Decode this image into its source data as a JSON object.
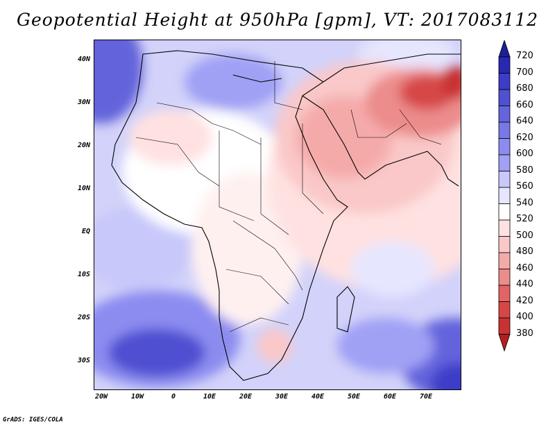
{
  "title": "Geopotential Height at 950hPa [gpm], VT: 2017083112",
  "credit": "GrADS: IGES/COLA",
  "map": {
    "lat_labels": [
      "40N",
      "30N",
      "20N",
      "10N",
      "EQ",
      "10S",
      "20S",
      "30S"
    ],
    "lon_labels": [
      "20W",
      "10W",
      "0",
      "10E",
      "20E",
      "30E",
      "40E",
      "50E",
      "60E",
      "70E"
    ]
  },
  "colorbar": {
    "labels": [
      "720",
      "700",
      "680",
      "660",
      "640",
      "620",
      "600",
      "580",
      "560",
      "540",
      "520",
      "500",
      "480",
      "460",
      "440",
      "420",
      "400",
      "380"
    ],
    "colors": [
      "#1e1e96",
      "#2828b4",
      "#3c3cc8",
      "#5050d2",
      "#6464dc",
      "#7878e6",
      "#8c8cf0",
      "#a0a0f5",
      "#c8c8fa",
      "#e6e6ff",
      "#ffffff",
      "#ffe1e1",
      "#fac8c8",
      "#f5aaaa",
      "#ec8c8c",
      "#e26464",
      "#d74646",
      "#c83232",
      "#b41e1e"
    ]
  }
}
